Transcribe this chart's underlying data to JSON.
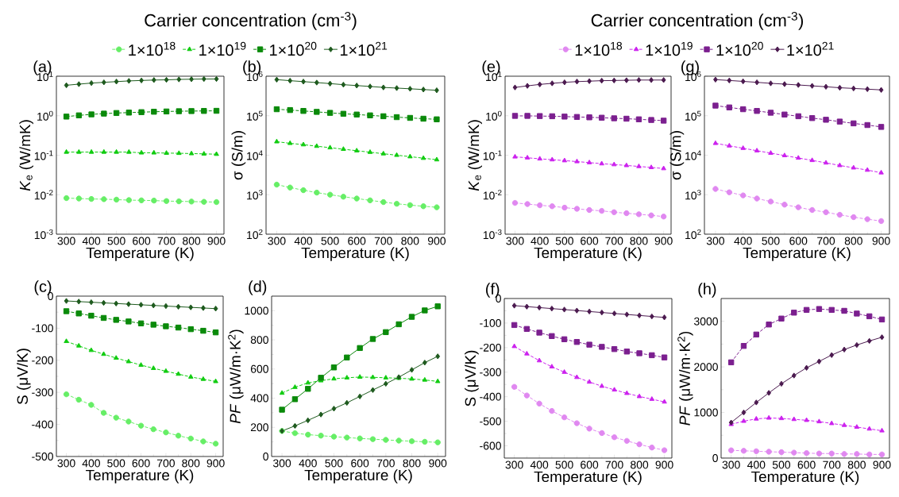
{
  "chart_data": [
    {
      "type": "line",
      "title": "(a)",
      "legend_title": "Carrier concentration (cm$^{-3}$)",
      "legend": "top",
      "xlabel": "Temperature (K)",
      "ylabel": "*K*$_{e}$ (W/mK)",
      "log": true,
      "xlim": [
        260,
        930
      ],
      "xticks": [
        300,
        400,
        500,
        600,
        700,
        800,
        900
      ],
      "ylim": [
        0.001,
        10
      ],
      "yticks": [
        {
          "value": 0.001,
          "label": "10$^{-3}$"
        },
        {
          "value": 0.01,
          "label": "10$^{-2}$"
        },
        {
          "value": 0.1,
          "label": "10$^{-1}$"
        },
        {
          "value": 1,
          "label": "10$^{0}$"
        },
        {
          "value": 10,
          "label": "10$^{1}$"
        }
      ],
      "x": [
        300,
        350,
        400,
        450,
        500,
        550,
        600,
        650,
        700,
        750,
        800,
        850,
        900
      ],
      "series": [
        {
          "name": "1×10$^{18}$",
          "color": "#66ee66",
          "marker": "circle",
          "line_style": "dashed",
          "values": [
            0.0082,
            0.008,
            0.0078,
            0.0077,
            0.0075,
            0.0073,
            0.0072,
            0.0071,
            0.0069,
            0.0068,
            0.0067,
            0.0066,
            0.0065
          ]
        },
        {
          "name": "1×10$^{19}$",
          "color": "#11cc11",
          "marker": "triangle",
          "line_style": "dashed",
          "values": [
            0.12,
            0.12,
            0.12,
            0.12,
            0.12,
            0.12,
            0.115,
            0.115,
            0.113,
            0.112,
            0.11,
            0.108,
            0.106
          ]
        },
        {
          "name": "1×10$^{20}$",
          "color": "#0a8a0a",
          "marker": "square",
          "line_style": "dashed",
          "values": [
            0.95,
            1.02,
            1.08,
            1.13,
            1.17,
            1.2,
            1.23,
            1.26,
            1.28,
            1.3,
            1.31,
            1.32,
            1.33
          ]
        },
        {
          "name": "1×10$^{21}$",
          "color": "#1e5a1e",
          "marker": "diamond",
          "line_style": "solid",
          "values": [
            5.9,
            6.3,
            6.7,
            7.0,
            7.3,
            7.6,
            7.8,
            8.0,
            8.1,
            8.3,
            8.4,
            8.5,
            8.5
          ]
        }
      ]
    },
    {
      "type": "line",
      "title": "(b)",
      "xlabel": "Temperature (K)",
      "ylabel": "σ (S/m)",
      "log": true,
      "xlim": [
        260,
        930
      ],
      "xticks": [
        300,
        400,
        500,
        600,
        700,
        800,
        900
      ],
      "ylim": [
        100,
        1000000
      ],
      "yticks": [
        {
          "value": 100,
          "label": "10$^{2}$"
        },
        {
          "value": 1000,
          "label": "10$^{3}$"
        },
        {
          "value": 10000,
          "label": "10$^{4}$"
        },
        {
          "value": 100000,
          "label": "10$^{5}$"
        },
        {
          "value": 1000000,
          "label": "10$^{6}$"
        }
      ],
      "x": [
        300,
        350,
        400,
        450,
        500,
        550,
        600,
        650,
        700,
        750,
        800,
        850,
        900
      ],
      "series": [
        {
          "color": "#66ee66",
          "marker": "circle",
          "line_style": "dashed",
          "values": [
            1800,
            1520,
            1300,
            1130,
            1000,
            890,
            800,
            720,
            650,
            590,
            545,
            510,
            480
          ]
        },
        {
          "color": "#11cc11",
          "marker": "triangle",
          "line_style": "dashed",
          "values": [
            22000,
            20000,
            18500,
            16900,
            15500,
            14200,
            13000,
            11900,
            10900,
            10000,
            9200,
            8400,
            7700
          ]
        },
        {
          "color": "#0a8a0a",
          "marker": "square",
          "line_style": "dashed",
          "values": [
            146000,
            139000,
            132000,
            125000,
            118000,
            112000,
            107000,
            102000,
            97000,
            92000,
            88000,
            84000,
            81000
          ]
        },
        {
          "color": "#1e5a1e",
          "marker": "diamond",
          "line_style": "solid",
          "values": [
            820000,
            770000,
            730000,
            690000,
            650000,
            610000,
            580000,
            550000,
            520000,
            500000,
            480000,
            460000,
            440000
          ]
        }
      ]
    },
    {
      "type": "line",
      "title": "(e)",
      "legend_title": "Carrier concentration (cm$^{-3}$)",
      "legend": "top",
      "xlabel": "Temperature (K)",
      "ylabel": "*K*$_{e}$ (W/mK)",
      "log": true,
      "xlim": [
        260,
        930
      ],
      "xticks": [
        300,
        400,
        500,
        600,
        700,
        800,
        900
      ],
      "ylim": [
        0.001,
        10
      ],
      "yticks": [
        {
          "value": 0.001,
          "label": "10$^{-3}$"
        },
        {
          "value": 0.01,
          "label": "10$^{-2}$"
        },
        {
          "value": 0.1,
          "label": "10$^{-1}$"
        },
        {
          "value": 1,
          "label": "10$^{0}$"
        },
        {
          "value": 10,
          "label": "10$^{1}$"
        }
      ],
      "x": [
        300,
        350,
        400,
        450,
        500,
        550,
        600,
        650,
        700,
        750,
        800,
        850,
        900
      ],
      "series": [
        {
          "name": "1×10$^{18}$",
          "color": "#e088f0",
          "marker": "circle",
          "line_style": "dashed",
          "values": [
            0.0062,
            0.0058,
            0.0054,
            0.0051,
            0.0047,
            0.0044,
            0.0041,
            0.0039,
            0.0036,
            0.0034,
            0.0032,
            0.003,
            0.0028
          ]
        },
        {
          "name": "1×10$^{19}$",
          "color": "#cc22ee",
          "marker": "triangle",
          "line_style": "dashed",
          "values": [
            0.091,
            0.086,
            0.081,
            0.077,
            0.073,
            0.069,
            0.065,
            0.061,
            0.058,
            0.055,
            0.052,
            0.049,
            0.046
          ]
        },
        {
          "name": "1×10$^{20}$",
          "color": "#7b1f8f",
          "marker": "square",
          "line_style": "dashed",
          "values": [
            0.99,
            0.99,
            0.98,
            0.97,
            0.95,
            0.93,
            0.91,
            0.89,
            0.86,
            0.84,
            0.81,
            0.78,
            0.75
          ]
        },
        {
          "name": "1×10$^{21}$",
          "color": "#4b1a4f",
          "marker": "diamond",
          "line_style": "solid",
          "values": [
            5.2,
            5.7,
            6.2,
            6.6,
            7.0,
            7.3,
            7.5,
            7.7,
            7.8,
            7.9,
            8.0,
            8.0,
            8.0
          ]
        }
      ]
    },
    {
      "type": "line",
      "title": "(g)",
      "xlabel": "Temperature (K)",
      "ylabel": "σ (S/m)",
      "log": true,
      "xlim": [
        260,
        930
      ],
      "xticks": [
        300,
        400,
        500,
        600,
        700,
        800,
        900
      ],
      "ylim": [
        100,
        1000000
      ],
      "yticks": [
        {
          "value": 100,
          "label": "10$^{2}$"
        },
        {
          "value": 1000,
          "label": "10$^{3}$"
        },
        {
          "value": 10000,
          "label": "10$^{4}$"
        },
        {
          "value": 100000,
          "label": "10$^{5}$"
        },
        {
          "value": 1000000,
          "label": "10$^{6}$"
        }
      ],
      "x": [
        300,
        350,
        400,
        450,
        500,
        550,
        600,
        650,
        700,
        750,
        800,
        850,
        900
      ],
      "series": [
        {
          "color": "#e088f0",
          "marker": "circle",
          "line_style": "dashed",
          "values": [
            1400,
            1150,
            960,
            800,
            670,
            560,
            480,
            410,
            360,
            310,
            270,
            240,
            215
          ]
        },
        {
          "color": "#cc22ee",
          "marker": "triangle",
          "line_style": "dashed",
          "values": [
            20000,
            17300,
            15000,
            13000,
            11300,
            9800,
            8500,
            7400,
            6400,
            5500,
            4800,
            4200,
            3600
          ]
        },
        {
          "color": "#7b1f8f",
          "marker": "square",
          "line_style": "dashed",
          "values": [
            180000,
            162000,
            146000,
            132000,
            119000,
            107000,
            97000,
            87000,
            79000,
            71000,
            64000,
            58000,
            52000
          ]
        },
        {
          "color": "#4b1a4f",
          "marker": "diamond",
          "line_style": "solid",
          "values": [
            820000,
            780000,
            740000,
            700000,
            660000,
            630000,
            600000,
            570000,
            540000,
            510000,
            490000,
            470000,
            450000
          ]
        }
      ]
    },
    {
      "type": "line",
      "title": "(c)",
      "xlabel": "Temperature (K)",
      "ylabel": "S (μV/K)",
      "xlim": [
        260,
        930
      ],
      "xticks": [
        300,
        400,
        500,
        600,
        700,
        800,
        900
      ],
      "ylim": [
        -500,
        0
      ],
      "yticks": [
        -500,
        -400,
        -300,
        -200,
        -100,
        0
      ],
      "x": [
        300,
        350,
        400,
        450,
        500,
        550,
        600,
        650,
        700,
        750,
        800,
        850,
        900
      ],
      "series": [
        {
          "color": "#66ee66",
          "marker": "circle",
          "line_style": "dashed",
          "values": [
            -306,
            -323,
            -339,
            -364,
            -379,
            -391,
            -404,
            -415,
            -425,
            -435,
            -444,
            -453,
            -460
          ]
        },
        {
          "color": "#11cc11",
          "marker": "triangle",
          "line_style": "dashed",
          "values": [
            -141,
            -155,
            -169,
            -181,
            -193,
            -204,
            -215,
            -225,
            -234,
            -243,
            -252,
            -259,
            -266
          ]
        },
        {
          "color": "#0a8a0a",
          "marker": "square",
          "line_style": "dashed",
          "values": [
            -47,
            -54,
            -61,
            -68,
            -74,
            -79,
            -85,
            -89,
            -94,
            -98,
            -103,
            -108,
            -113
          ]
        },
        {
          "color": "#1e5a1e",
          "marker": "diamond",
          "line_style": "solid",
          "values": [
            -15,
            -17,
            -19,
            -21,
            -23,
            -25,
            -27,
            -29,
            -31,
            -33,
            -35,
            -37,
            -39
          ]
        }
      ]
    },
    {
      "type": "line",
      "title": "(d)",
      "xlabel": "Temperature (K)",
      "ylabel": "*PF* (μW/m·K$^{2}$)",
      "xlim": [
        260,
        930
      ],
      "xticks": [
        300,
        400,
        500,
        600,
        700,
        800,
        900
      ],
      "ylim": [
        0,
        1100
      ],
      "yticks": [
        0,
        200,
        400,
        600,
        800,
        1000
      ],
      "x": [
        300,
        350,
        400,
        450,
        500,
        550,
        600,
        650,
        700,
        750,
        800,
        850,
        900
      ],
      "series": [
        {
          "color": "#66ee66",
          "marker": "circle",
          "line_style": "dashed",
          "values": [
            175,
            160,
            150,
            143,
            136,
            130,
            124,
            119,
            114,
            109,
            105,
            101,
            97
          ]
        },
        {
          "color": "#11cc11",
          "marker": "triangle",
          "line_style": "dashed",
          "values": [
            435,
            475,
            505,
            520,
            533,
            540,
            545,
            543,
            540,
            537,
            532,
            525,
            515
          ]
        },
        {
          "color": "#0a8a0a",
          "marker": "square",
          "line_style": "solid",
          "values": [
            321,
            393,
            464,
            540,
            611,
            679,
            744,
            806,
            853,
            907,
            958,
            1002,
            1030
          ]
        },
        {
          "color": "#1e5a1e",
          "marker": "diamond",
          "line_style": "solid",
          "values": [
            175,
            210,
            248,
            288,
            328,
            368,
            412,
            456,
            499,
            544,
            594,
            644,
            687
          ]
        }
      ]
    },
    {
      "type": "line",
      "title": "(f)",
      "xlabel": "Temperature (K)",
      "ylabel": "S (μV/K)",
      "xlim": [
        260,
        930
      ],
      "xticks": [
        300,
        400,
        500,
        600,
        700,
        800,
        900
      ],
      "ylim": [
        -650,
        0
      ],
      "yticks": [
        -600,
        -500,
        -400,
        -300,
        -200,
        -100,
        0
      ],
      "x": [
        300,
        350,
        400,
        450,
        500,
        550,
        600,
        650,
        700,
        750,
        800,
        850,
        900
      ],
      "series": [
        {
          "color": "#e088f0",
          "marker": "circle",
          "line_style": "dashed",
          "values": [
            -360,
            -395,
            -428,
            -458,
            -484,
            -508,
            -530,
            -548,
            -565,
            -580,
            -594,
            -607,
            -618
          ]
        },
        {
          "color": "#cc22ee",
          "marker": "triangle",
          "line_style": "dashed",
          "values": [
            -195,
            -225,
            -253,
            -278,
            -300,
            -321,
            -340,
            -357,
            -372,
            -386,
            -399,
            -410,
            -421
          ]
        },
        {
          "color": "#7b1f8f",
          "marker": "square",
          "line_style": "dashed",
          "values": [
            -108,
            -124,
            -139,
            -153,
            -166,
            -177,
            -188,
            -197,
            -206,
            -216,
            -223,
            -231,
            -240
          ]
        },
        {
          "color": "#4b1a4f",
          "marker": "diamond",
          "line_style": "solid",
          "values": [
            -29,
            -33,
            -37,
            -41,
            -45,
            -49,
            -53,
            -57,
            -61,
            -65,
            -69,
            -73,
            -77
          ]
        }
      ]
    },
    {
      "type": "line",
      "title": "(h)",
      "xlabel": "Temperature (K)",
      "ylabel": "*PF* (μW/m·K$^{2}$)",
      "xlim": [
        260,
        930
      ],
      "xticks": [
        300,
        400,
        500,
        600,
        700,
        800,
        900
      ],
      "ylim": [
        0,
        3500
      ],
      "yticks": [
        0,
        1000,
        2000,
        3000
      ],
      "x": [
        300,
        350,
        400,
        450,
        500,
        550,
        600,
        650,
        700,
        750,
        800,
        850,
        900
      ],
      "series": [
        {
          "color": "#e088f0",
          "marker": "circle",
          "line_style": "dashed",
          "values": [
            170,
            160,
            150,
            140,
            130,
            120,
            110,
            100,
            100,
            90,
            90,
            80,
            80
          ]
        },
        {
          "color": "#cc22ee",
          "marker": "triangle",
          "line_style": "dashed",
          "values": [
            740,
            810,
            860,
            880,
            870,
            850,
            830,
            800,
            760,
            720,
            680,
            640,
            600
          ]
        },
        {
          "color": "#7b1f8f",
          "marker": "square",
          "line_style": "dashed",
          "values": [
            2100,
            2460,
            2710,
            2930,
            3060,
            3190,
            3250,
            3270,
            3250,
            3230,
            3170,
            3110,
            3040
          ]
        },
        {
          "color": "#4b1a4f",
          "marker": "diamond",
          "line_style": "solid",
          "values": [
            780,
            1000,
            1220,
            1430,
            1630,
            1810,
            1980,
            2120,
            2260,
            2380,
            2480,
            2570,
            2650
          ]
        }
      ]
    }
  ]
}
